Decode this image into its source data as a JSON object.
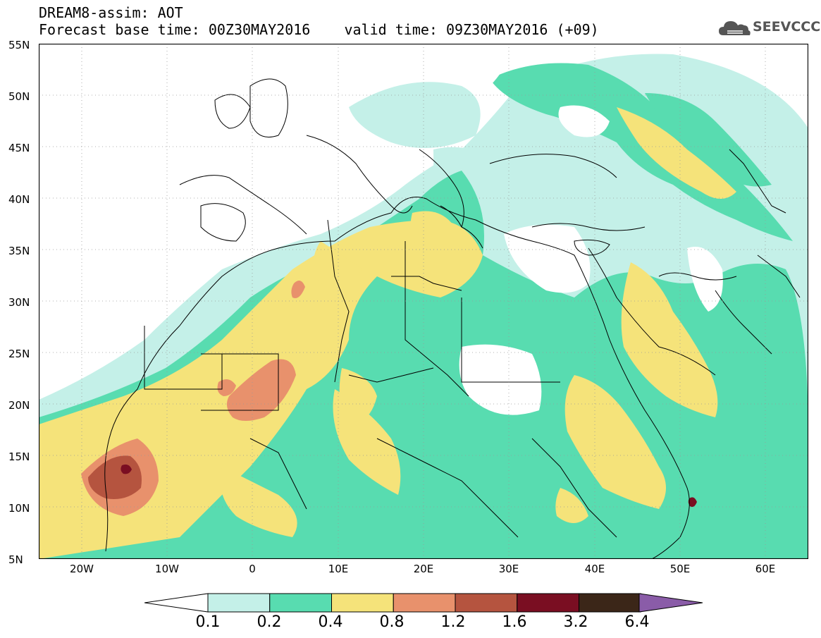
{
  "header": {
    "title_line": "DREAM8-assim: AOT",
    "base_time_line": "Forecast base time: 00Z30MAY2016",
    "valid_time_line": "valid time: 09Z30MAY2016 (+09)"
  },
  "logo": {
    "text": "SEEVCCC",
    "icon": "cloud-icon"
  },
  "axes": {
    "lat_labels": [
      "55N",
      "50N",
      "45N",
      "40N",
      "35N",
      "30N",
      "25N",
      "20N",
      "15N",
      "10N",
      "5N"
    ],
    "lon_labels": [
      "20W",
      "10W",
      "0",
      "10E",
      "20E",
      "30E",
      "40E",
      "50E",
      "60E"
    ],
    "lat_range": [
      5,
      55
    ],
    "lon_range": [
      -25,
      65
    ]
  },
  "colorbar": {
    "labels": [
      "0.1",
      "0.2",
      "0.4",
      "0.8",
      "1.2",
      "1.6",
      "3.2",
      "6.4"
    ],
    "colors": [
      "#c4f0e8",
      "#58dcb0",
      "#f5e37a",
      "#e8916c",
      "#b5543f",
      "#7a0e22",
      "#3b2618",
      "#8a5ca8"
    ],
    "under_color": "#ffffff"
  },
  "map_colors": {
    "ocean": "#ffffff",
    "c01": "#c4f0e8",
    "c02": "#58dcb0",
    "c04": "#f5e37a",
    "c08": "#e8916c",
    "c12": "#b5543f",
    "c16": "#7a0e22"
  }
}
